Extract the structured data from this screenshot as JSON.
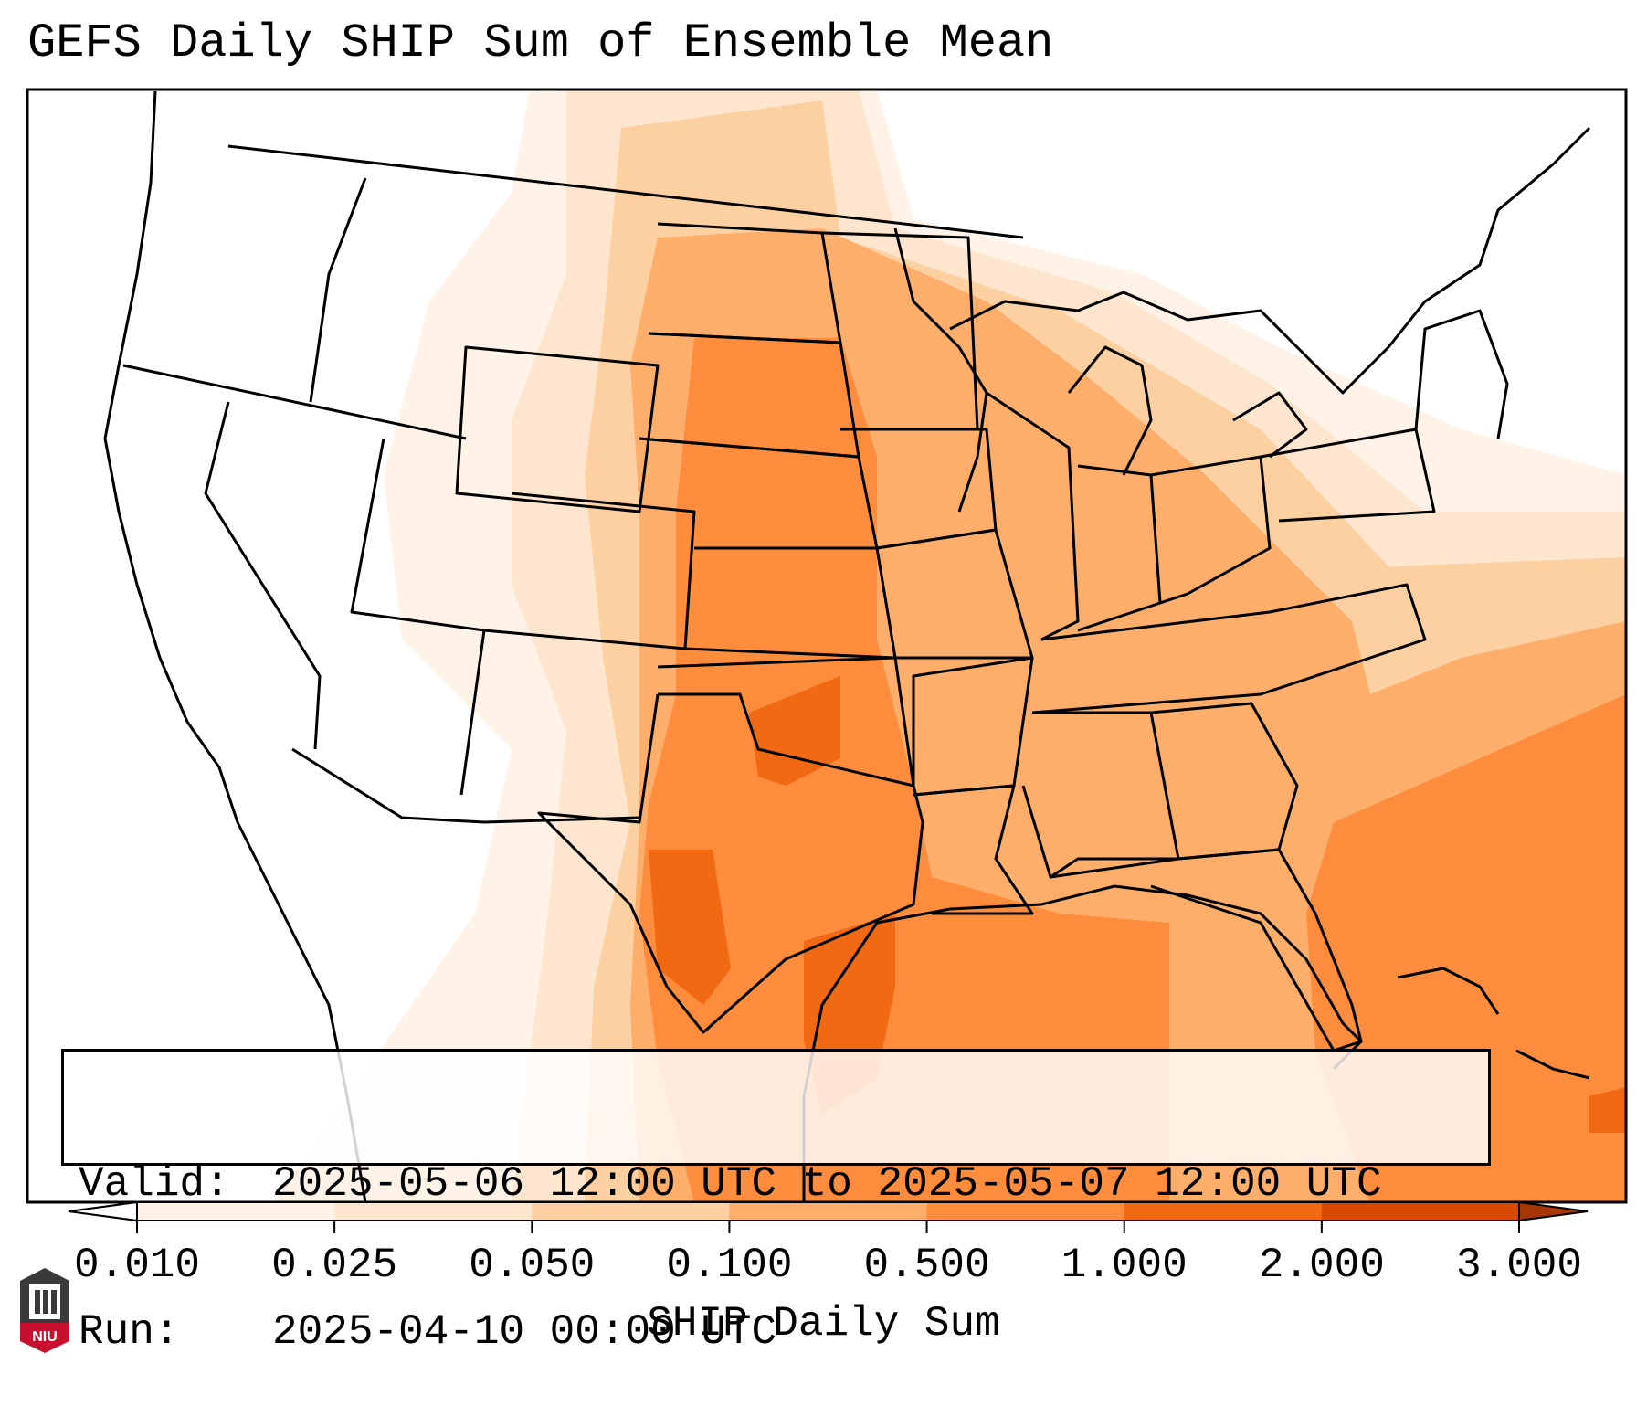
{
  "title": "GEFS Daily SHIP Sum of Ensemble Mean",
  "info": {
    "valid_label": "Valid:",
    "valid_value": "2025-05-06 12:00 UTC to 2025-05-07 12:00 UTC",
    "run_label": "Run:",
    "run_value": "2025-04-10 00:00 UTC"
  },
  "colorbar": {
    "label": "SHIP Daily Sum",
    "ticks": [
      "0.010",
      "0.025",
      "0.050",
      "0.100",
      "0.500",
      "1.000",
      "2.000",
      "3.000"
    ],
    "colors": [
      "#fff3e8",
      "#fee6ce",
      "#fdd0a2",
      "#fdae6b",
      "#fd8d3c",
      "#f16913",
      "#d94801"
    ],
    "under_color": "#ffffff",
    "over_color": "#a63603"
  },
  "map": {
    "projection": "Lambert conformal, CONUS",
    "borders": "state and national boundaries",
    "field": "GEFS daily SHIP sum, ensemble mean"
  },
  "logo": {
    "text": "NIU"
  }
}
